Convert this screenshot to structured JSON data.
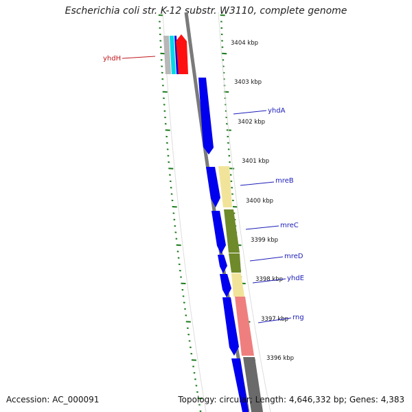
{
  "title": "Escherichia coli str. K-12 substr. W3110, complete genome",
  "footer": {
    "accession": "Accession: AC_000091",
    "summary": "Topology: circular; Length: 4,646,332 bp; Genes: 4,383"
  },
  "colors": {
    "tick": "#1a7a1a",
    "backbone": "#7a7a7a",
    "gene_forward": "#0000ee",
    "label_blue": "#1a1ab8",
    "label_red": "#c0151b"
  },
  "kbp_labels": [
    "3404 kbp",
    "3403 kbp",
    "3402 kbp",
    "3401 kbp",
    "3400 kbp",
    "3399 kbp",
    "3398 kbp",
    "3397 kbp",
    "3396 kbp"
  ],
  "gene_labels": [
    {
      "name": "yhdH",
      "color": "red"
    },
    {
      "name": "yhdA",
      "color": "blue"
    },
    {
      "name": "mreB",
      "color": "blue"
    },
    {
      "name": "mreC",
      "color": "blue"
    },
    {
      "name": "mreD",
      "color": "blue"
    },
    {
      "name": "yhdE",
      "color": "blue"
    },
    {
      "name": "rng",
      "color": "blue"
    }
  ]
}
